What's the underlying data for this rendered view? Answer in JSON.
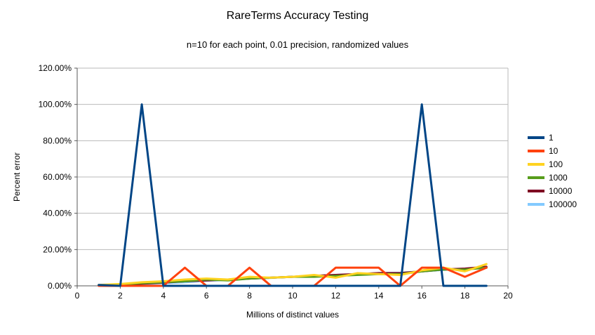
{
  "title": "RareTerms Accuracy Testing",
  "subtitle": "n=10 for each point, 0.01 precision, randomized values",
  "chart_data": {
    "type": "line",
    "title": "RareTerms Accuracy Testing",
    "subtitle": "n=10 for each point, 0.01 precision, randomized values",
    "xlabel": "Millions of distinct values",
    "ylabel": "Percent error",
    "xlim": [
      0,
      20
    ],
    "ylim": [
      0,
      120
    ],
    "grid": "horizontal",
    "legend_position": "right",
    "x_tick_values": [
      0,
      2,
      4,
      6,
      8,
      10,
      12,
      14,
      16,
      18,
      20
    ],
    "x_tick_labels": [
      "0",
      "2",
      "4",
      "6",
      "8",
      "10",
      "12",
      "14",
      "16",
      "18",
      "20"
    ],
    "y_tick_values": [
      0,
      20,
      40,
      60,
      80,
      100,
      120
    ],
    "y_tick_labels": [
      "0.00%",
      "20.00%",
      "40.00%",
      "60.00%",
      "80.00%",
      "100.00%",
      "120.00%"
    ],
    "x": [
      1,
      2,
      3,
      4,
      5,
      6,
      7,
      8,
      9,
      10,
      11,
      12,
      13,
      14,
      15,
      16,
      17,
      18,
      19
    ],
    "series": [
      {
        "name": "1",
        "color": "#004586",
        "values": [
          0.5,
          0,
          100,
          0,
          0,
          0,
          0,
          0,
          0,
          0,
          0,
          0,
          0,
          0,
          0,
          100,
          0,
          0,
          0
        ]
      },
      {
        "name": "10",
        "color": "#FF420E",
        "values": [
          0,
          0,
          0,
          0,
          10,
          0,
          0,
          10,
          0,
          0,
          0,
          10,
          10,
          10,
          0,
          10,
          10,
          5,
          10
        ]
      },
      {
        "name": "100",
        "color": "#FFD320",
        "values": [
          0.5,
          1,
          2,
          2.5,
          3.5,
          4,
          3.5,
          5,
          4.5,
          5,
          6,
          4.5,
          7,
          6.5,
          6,
          8.5,
          10,
          8,
          12
        ]
      },
      {
        "name": "1000",
        "color": "#579D1C",
        "values": [
          0.3,
          0.8,
          1.5,
          2,
          2.5,
          3.5,
          3,
          4,
          4.5,
          5,
          5,
          5.5,
          6,
          6.5,
          6.5,
          8,
          9,
          9,
          10
        ]
      },
      {
        "name": "10000",
        "color": "#7E0021",
        "values": [
          0.2,
          0.6,
          1.2,
          1.8,
          2.5,
          3,
          3.5,
          4,
          4.5,
          5,
          5.5,
          6,
          6.5,
          7,
          7,
          8,
          9,
          9.5,
          10.5
        ]
      },
      {
        "name": "100000",
        "color": "#83CAFF",
        "values": [
          0.1,
          0.5,
          1,
          1.5,
          2,
          2.8,
          3.3,
          4,
          4.4,
          5,
          5.4,
          6,
          6.4,
          7,
          7.2,
          8,
          8.8,
          9.4,
          10
        ]
      }
    ]
  }
}
